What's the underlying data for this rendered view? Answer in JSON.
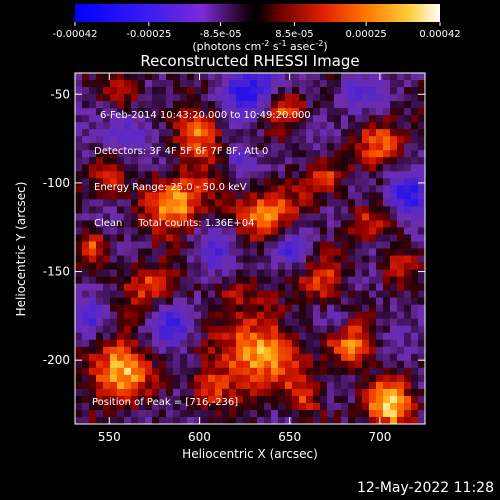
{
  "colorbar": {
    "ticks": [
      "-0.00042",
      "-0.00025",
      "-8.5e-05",
      "8.5e-05",
      "0.00025",
      "0.00042"
    ],
    "tick_values": [
      -0.00042,
      -0.00025,
      -8.5e-05,
      8.5e-05,
      0.00025,
      0.00042
    ],
    "range": [
      -0.00042,
      0.00042
    ],
    "unit_main": "(photons cm",
    "unit_exp1": "-2",
    "unit_mid": " s",
    "unit_exp2": "-1",
    "unit_mid2": " asec",
    "unit_exp3": "-2",
    "unit_close": ")"
  },
  "image": {
    "title": "Reconstructed RHESSI Image",
    "info": [
      "6-Feb-2014 10:43:20.000 to 10:49:20.000",
      "Detectors: 3F 4F 5F 6F 7F 8F, Att 0",
      "Energy Range: 25.0 - 50.0 keV",
      "Clean     Total counts: 1.36E+04"
    ],
    "peak_label": "Position of Peak = [716,-236]",
    "xlabel": "Heliocentric X (arcsec)",
    "ylabel": "Heliocentric Y (arcsec)",
    "xticks": [
      "550",
      "600",
      "650",
      "700"
    ],
    "xtick_values": [
      550,
      600,
      650,
      700
    ],
    "yticks": [
      "-50",
      "-100",
      "-150",
      "-200"
    ],
    "ytick_values": [
      -50,
      -100,
      -150,
      -200
    ],
    "xlim": [
      531,
      725
    ],
    "ylim": [
      -236,
      -38
    ]
  },
  "footer": {
    "timestamp": "12-May-2022 11:28"
  }
}
